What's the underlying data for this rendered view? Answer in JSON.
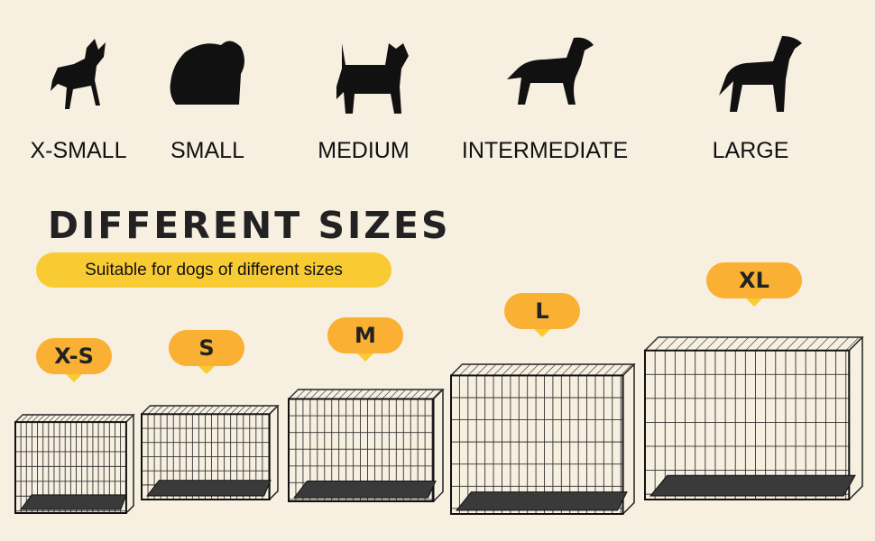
{
  "dog_sizes": [
    {
      "label": "X-SMALL",
      "icon": "chihuahua-silhouette-icon"
    },
    {
      "label": "SMALL",
      "icon": "shih-tzu-silhouette-icon"
    },
    {
      "label": "MEDIUM",
      "icon": "terrier-silhouette-icon"
    },
    {
      "label": "INTERMEDIATE",
      "icon": "spaniel-silhouette-icon"
    },
    {
      "label": "LARGE",
      "icon": "retriever-silhouette-icon"
    }
  ],
  "title": "DIFFERENT SIZES",
  "subtitle": "Suitable for dogs of different sizes",
  "crates": [
    {
      "label": "X-S"
    },
    {
      "label": "S"
    },
    {
      "label": "M"
    },
    {
      "label": "L"
    },
    {
      "label": "XL"
    }
  ],
  "colors": {
    "background": "#f7efe0",
    "pill": "#f9cb33",
    "badge": "#f9b033",
    "text": "#222222"
  }
}
